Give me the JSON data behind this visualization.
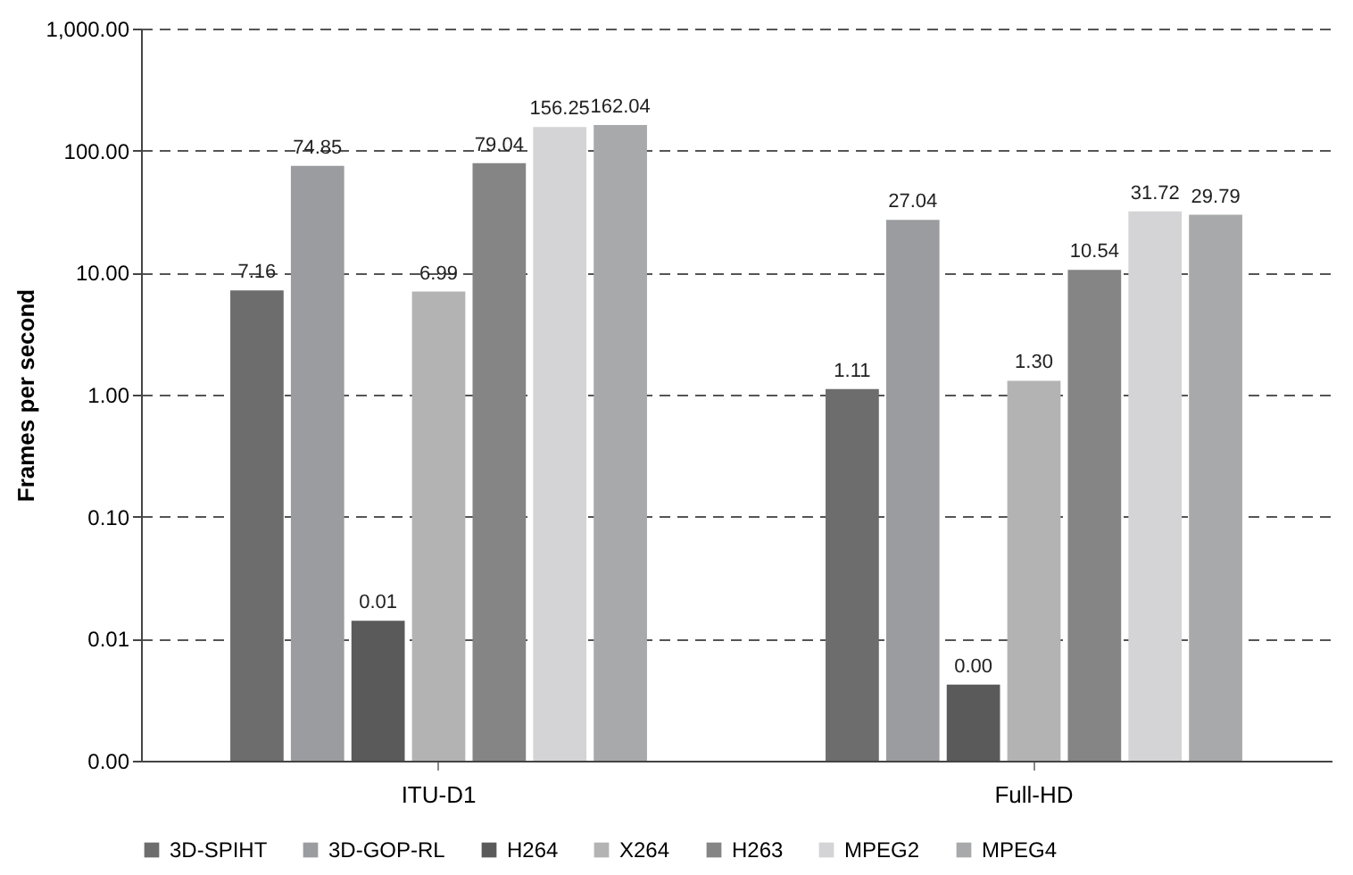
{
  "chart_data": {
    "type": "bar",
    "ylabel": "Frames per second",
    "categories": [
      "ITU-D1",
      "Full-HD"
    ],
    "series": [
      {
        "name": "3D-SPIHT",
        "color": "#6d6d6d",
        "values": [
          7.16,
          1.11
        ],
        "value_labels": [
          "7.16",
          "1.11"
        ]
      },
      {
        "name": "3D-GOP-RL",
        "color": "#9a9c9f",
        "values": [
          74.85,
          27.04
        ],
        "value_labels": [
          "74.85",
          "27.04"
        ]
      },
      {
        "name": "H264",
        "color": "#5a5a5a",
        "values": [
          0.014,
          0.0042
        ],
        "value_labels": [
          "0.01",
          "0.00"
        ]
      },
      {
        "name": "X264",
        "color": "#b3b3b3",
        "values": [
          6.99,
          1.3
        ],
        "value_labels": [
          "6.99",
          "1.30"
        ]
      },
      {
        "name": "H263",
        "color": "#858585",
        "values": [
          79.04,
          10.54
        ],
        "value_labels": [
          "79.04",
          "10.54"
        ]
      },
      {
        "name": "MPEG2",
        "color": "#d4d4d6",
        "values": [
          156.25,
          31.72
        ],
        "value_labels": [
          "156.25",
          "31.72"
        ]
      },
      {
        "name": "MPEG4",
        "color": "#a8a9ab",
        "values": [
          162.04,
          29.79
        ],
        "value_labels": [
          "162.04",
          "29.79"
        ]
      }
    ],
    "log": true,
    "ylim": [
      0.001,
      1000
    ],
    "yticks": [
      {
        "value": 0.001,
        "label": "0.00"
      },
      {
        "value": 0.01,
        "label": "0.01"
      },
      {
        "value": 0.1,
        "label": "0.10"
      },
      {
        "value": 1,
        "label": "1.00"
      },
      {
        "value": 10,
        "label": "10.00"
      },
      {
        "value": 100,
        "label": "100.00"
      },
      {
        "value": 1000,
        "label": "1,000.00"
      }
    ],
    "grid": "y",
    "legend": "bottom"
  }
}
